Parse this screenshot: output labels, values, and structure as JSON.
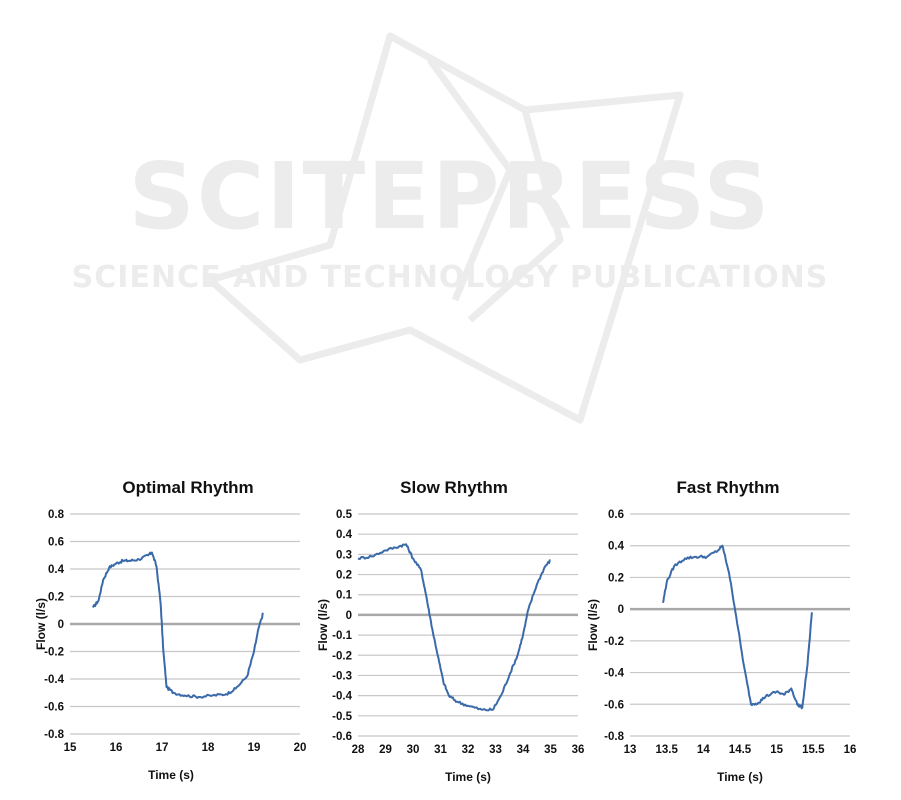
{
  "watermark": {
    "brand": "SCITEPRESS",
    "tagline": "SCIENCE AND TECHNOLOGY PUBLICATIONS"
  },
  "colors": {
    "line": "#3a6aaa",
    "grid": "#c8c8c8",
    "zero_line": "#a8a8a8",
    "watermark": "#ececec"
  },
  "chart_data": [
    {
      "type": "line",
      "title": "Optimal Rhythm",
      "xlabel": "Time (s)",
      "ylabel": "Flow (l/s)",
      "xlim": [
        15,
        20
      ],
      "ylim": [
        -0.8,
        0.8
      ],
      "xticks": [
        "15",
        "16",
        "17",
        "18",
        "19",
        "20"
      ],
      "yticks": [
        "0.8",
        "0.6",
        "0.4",
        "0.2",
        "0",
        "-0.2",
        "-0.4",
        "-0.6",
        "-0.8"
      ],
      "grid": true,
      "series": [
        {
          "x": [
            15.5,
            15.62,
            15.72,
            15.85,
            16.0,
            16.15,
            16.3,
            16.5,
            16.7,
            16.78,
            16.88,
            16.97,
            17.03,
            17.1,
            17.25,
            17.5,
            17.8,
            18.1,
            18.4,
            18.6,
            18.85,
            19.0,
            19.1,
            19.2
          ],
          "y": [
            0.12,
            0.17,
            0.32,
            0.41,
            0.44,
            0.46,
            0.46,
            0.47,
            0.5,
            0.52,
            0.42,
            0.15,
            -0.2,
            -0.46,
            -0.5,
            -0.52,
            -0.53,
            -0.52,
            -0.51,
            -0.47,
            -0.38,
            -0.2,
            -0.03,
            0.08
          ]
        }
      ]
    },
    {
      "type": "line",
      "title": "Slow Rhythm",
      "xlabel": "Time (s)",
      "ylabel": "Flow (l/s)",
      "xlim": [
        28,
        36
      ],
      "ylim": [
        -0.6,
        0.5
      ],
      "xticks": [
        "28",
        "29",
        "30",
        "31",
        "32",
        "33",
        "34",
        "35",
        "36"
      ],
      "yticks": [
        "0.5",
        "0.4",
        "0.3",
        "0.2",
        "0.1",
        "0",
        "-0.1",
        "-0.2",
        "-0.3",
        "-0.4",
        "-0.5",
        "-0.6"
      ],
      "grid": true,
      "series": [
        {
          "x": [
            28.0,
            28.5,
            29.0,
            29.5,
            29.75,
            30.0,
            30.3,
            30.5,
            30.7,
            30.9,
            31.1,
            31.3,
            31.6,
            32.0,
            32.5,
            32.9,
            33.2,
            33.5,
            33.8,
            34.0,
            34.2,
            34.5,
            34.8,
            35.0
          ],
          "y": [
            0.28,
            0.29,
            0.32,
            0.34,
            0.35,
            0.28,
            0.22,
            0.08,
            -0.07,
            -0.2,
            -0.33,
            -0.4,
            -0.43,
            -0.45,
            -0.47,
            -0.47,
            -0.4,
            -0.3,
            -0.2,
            -0.1,
            0.03,
            0.15,
            0.24,
            0.27
          ]
        }
      ]
    },
    {
      "type": "line",
      "title": "Fast Rhythm",
      "xlabel": "Time (s)",
      "ylabel": "Flow (l/s)",
      "xlim": [
        13,
        16
      ],
      "ylim": [
        -0.8,
        0.6
      ],
      "xticks": [
        "13",
        "13.5",
        "14",
        "14.5",
        "15",
        "15.5",
        "16"
      ],
      "yticks": [
        "0.6",
        "0.4",
        "0.2",
        "0",
        "-0.2",
        "-0.4",
        "-0.6",
        "-0.8"
      ],
      "grid": true,
      "series": [
        {
          "x": [
            13.45,
            13.5,
            13.6,
            13.75,
            13.9,
            14.05,
            14.2,
            14.26,
            14.35,
            14.45,
            14.55,
            14.65,
            14.75,
            14.85,
            15.0,
            15.1,
            15.2,
            15.28,
            15.35,
            15.42,
            15.48
          ],
          "y": [
            0.04,
            0.17,
            0.27,
            0.32,
            0.33,
            0.33,
            0.37,
            0.4,
            0.23,
            -0.05,
            -0.35,
            -0.6,
            -0.59,
            -0.55,
            -0.52,
            -0.54,
            -0.5,
            -0.6,
            -0.62,
            -0.35,
            -0.02
          ]
        }
      ]
    }
  ]
}
